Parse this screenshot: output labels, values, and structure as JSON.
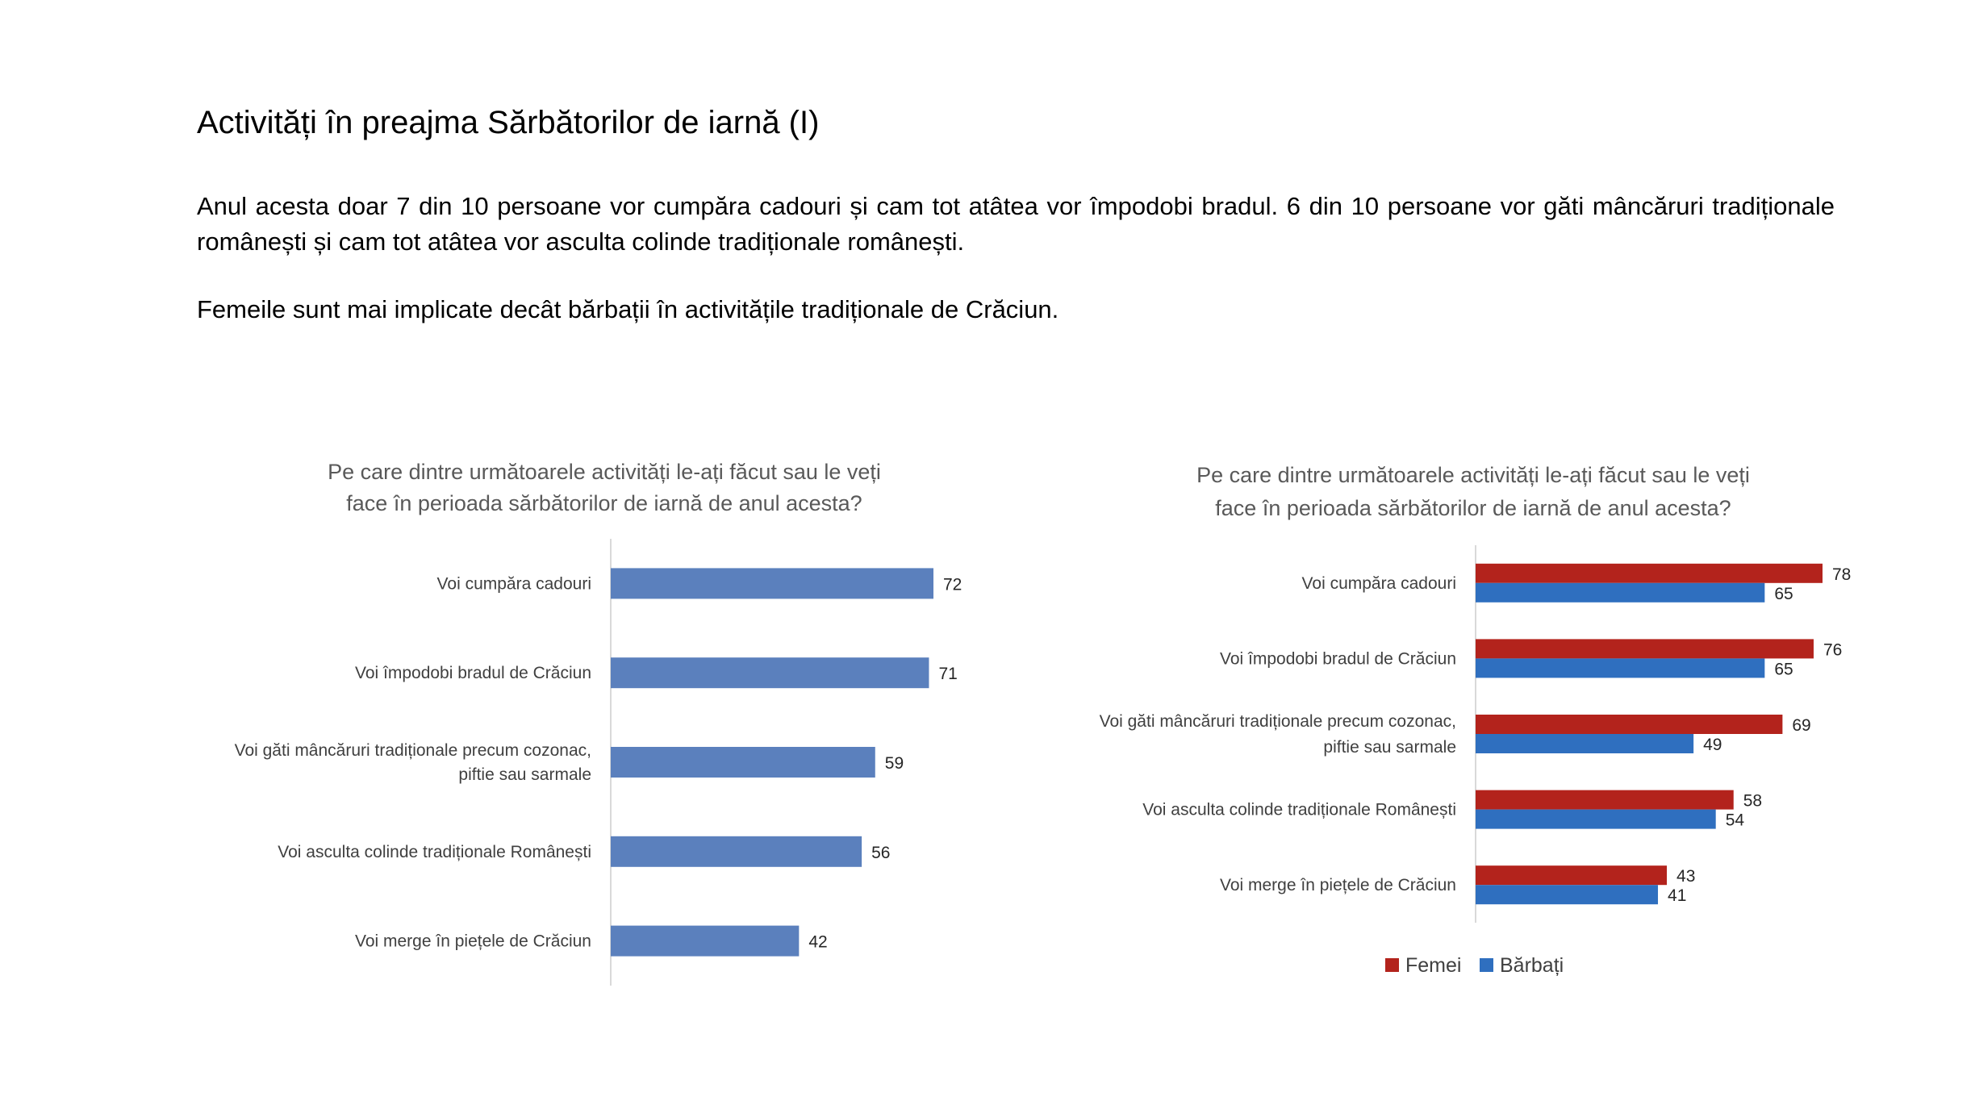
{
  "slide": {
    "title": "Activități în preajma Sărbătorilor de iarnă (I)",
    "paragraph1": "Anul acesta doar 7 din 10 persoane vor cumpăra cadouri și cam tot atâtea vor împodobi bradul. 6 din 10 persoane vor găti mâncăruri tradiționale românești și cam tot atâtea vor asculta colinde tradiționale românești.",
    "paragraph2": "Femeile sunt mai implicate decât bărbații în activitățile tradiționale de Crăciun."
  },
  "chart_data": [
    {
      "type": "bar",
      "orientation": "horizontal",
      "title_lines": [
        "Pe care dintre următoarele activități le-ați făcut sau le veți",
        "face în perioada sărbătorilor de iarnă de anul acesta?"
      ],
      "categories": [
        [
          "Voi cumpăra cadouri"
        ],
        [
          "Voi împodobi bradul de Crăciun"
        ],
        [
          "Voi găti mâncăruri tradiționale precum cozonac,",
          "piftie sau sarmale"
        ],
        [
          "Voi asculta colinde tradiționale Românești"
        ],
        [
          "Voi merge în piețele de Crăciun"
        ]
      ],
      "series": [
        {
          "values": [
            72,
            71,
            59,
            56,
            42
          ],
          "color": "#5B80BD"
        }
      ],
      "xlim": [
        0,
        100
      ],
      "grid": false,
      "data_labels": true
    },
    {
      "type": "bar",
      "orientation": "horizontal",
      "title_lines": [
        "Pe care dintre următoarele activități le-ați făcut sau le veți",
        "face în perioada sărbătorilor de iarnă de anul acesta?"
      ],
      "categories": [
        [
          "Voi cumpăra cadouri"
        ],
        [
          "Voi împodobi bradul de Crăciun"
        ],
        [
          "Voi găti mâncăruri tradiționale precum cozonac,",
          "piftie sau sarmale"
        ],
        [
          "Voi asculta colinde tradiționale Românești"
        ],
        [
          "Voi merge în piețele de Crăciun"
        ]
      ],
      "series": [
        {
          "name": "Femei",
          "values": [
            78,
            76,
            69,
            58,
            43
          ],
          "color": "#B3231C"
        },
        {
          "name": "Bărbați",
          "values": [
            65,
            65,
            49,
            54,
            41
          ],
          "color": "#2F6FBF"
        }
      ],
      "xlim": [
        0,
        100
      ],
      "grid": false,
      "data_labels": true,
      "legend": "bottom"
    }
  ]
}
